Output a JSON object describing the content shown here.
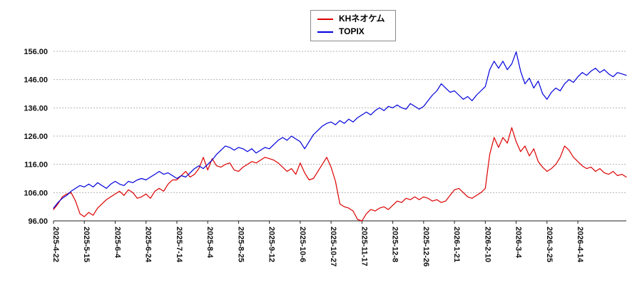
{
  "chart_data": {
    "type": "line",
    "title": "",
    "xlabel": "",
    "ylabel": "",
    "grid": "horizontal-dotted",
    "legend": {
      "position": "top-center",
      "entries": [
        {
          "label": "KHネオケム",
          "color": "#dd0000"
        },
        {
          "label": "TOPIX",
          "color": "#0000dd"
        }
      ]
    },
    "ylim": [
      96,
      156
    ],
    "y_ticks": [
      96,
      106,
      116,
      126,
      136,
      146,
      156
    ],
    "y_tick_labels": [
      "96.00",
      "106.00",
      "116.00",
      "126.00",
      "136.00",
      "146.00",
      "156.00"
    ],
    "x_tick_labels": [
      "2025-4-22",
      "2025-5-15",
      "2025-6-4",
      "2025-6-24",
      "2025-7-14",
      "2025-8-4",
      "2025-8-25",
      "2025-9-12",
      "2025-10-6",
      "2025-10-27",
      "2025-11-17",
      "2025-12-8",
      "2025-12-26",
      "2026-1-21",
      "2026-2-10",
      "2026-3-4",
      "2026-3-25",
      "2026-4-14"
    ],
    "points_per_tick_interval": 7,
    "series": [
      {
        "name": "KHネオケム",
        "color": "#dd0000",
        "values": [
          100.0,
          102.0,
          104.5,
          105.5,
          106.0,
          103.0,
          98.5,
          97.5,
          99.0,
          98.0,
          100.5,
          102.0,
          103.5,
          104.5,
          105.5,
          106.5,
          105.0,
          107.0,
          106.0,
          104.0,
          104.5,
          105.5,
          104.0,
          106.5,
          107.5,
          106.5,
          109.0,
          110.5,
          110.5,
          112.0,
          113.5,
          111.5,
          112.5,
          114.5,
          118.5,
          114.0,
          118.0,
          115.5,
          115.0,
          116.0,
          116.5,
          114.0,
          113.5,
          115.0,
          116.0,
          117.0,
          116.5,
          117.5,
          118.5,
          118.0,
          117.5,
          116.5,
          115.0,
          113.5,
          114.5,
          112.5,
          116.5,
          113.0,
          110.5,
          111.0,
          113.5,
          116.0,
          118.5,
          115.0,
          110.0,
          102.0,
          101.0,
          100.5,
          99.5,
          96.5,
          96.0,
          98.5,
          100.0,
          99.5,
          100.5,
          101.0,
          100.0,
          101.5,
          103.0,
          102.5,
          104.0,
          103.5,
          104.5,
          103.5,
          104.5,
          104.0,
          103.0,
          103.5,
          102.5,
          103.0,
          105.0,
          107.0,
          107.5,
          106.0,
          104.5,
          104.0,
          105.0,
          106.0,
          107.5,
          119.5,
          125.5,
          122.0,
          125.5,
          123.5,
          129.0,
          124.0,
          120.5,
          122.5,
          119.0,
          121.5,
          117.0,
          115.0,
          113.5,
          114.5,
          116.0,
          118.5,
          122.5,
          121.0,
          118.5,
          117.0,
          115.5,
          114.5,
          115.0,
          113.5,
          114.5,
          113.0,
          112.5,
          113.5,
          112.0,
          112.5,
          111.5
        ]
      },
      {
        "name": "TOPIX",
        "color": "#0000dd",
        "values": [
          100.5,
          102.5,
          104.0,
          105.0,
          106.5,
          107.5,
          108.5,
          108.0,
          109.0,
          108.0,
          109.5,
          108.5,
          107.5,
          109.0,
          110.0,
          109.0,
          108.5,
          110.0,
          109.5,
          110.5,
          111.0,
          110.5,
          111.5,
          112.5,
          113.5,
          112.5,
          113.0,
          112.0,
          111.0,
          112.0,
          111.5,
          113.0,
          114.5,
          115.5,
          114.5,
          116.0,
          117.5,
          119.5,
          121.0,
          122.5,
          122.0,
          121.0,
          122.0,
          121.5,
          120.5,
          121.5,
          120.0,
          121.0,
          122.0,
          121.5,
          123.0,
          124.5,
          125.5,
          124.5,
          126.0,
          125.0,
          124.0,
          121.5,
          124.0,
          126.5,
          128.0,
          129.5,
          130.5,
          131.0,
          130.0,
          131.5,
          130.5,
          132.0,
          131.0,
          132.5,
          133.5,
          134.5,
          133.5,
          135.0,
          136.0,
          135.0,
          136.5,
          136.0,
          137.0,
          136.0,
          135.5,
          137.5,
          136.5,
          135.5,
          136.5,
          138.5,
          140.5,
          142.0,
          144.5,
          143.0,
          141.5,
          142.0,
          140.5,
          139.0,
          140.0,
          138.5,
          140.5,
          142.0,
          143.5,
          149.5,
          152.5,
          150.0,
          152.5,
          149.5,
          151.5,
          155.8,
          149.0,
          144.5,
          146.5,
          143.0,
          145.5,
          141.0,
          139.0,
          141.5,
          143.0,
          142.0,
          144.5,
          146.0,
          145.0,
          147.0,
          148.5,
          147.5,
          149.0,
          150.0,
          148.5,
          149.5,
          148.0,
          147.0,
          148.5,
          148.0,
          147.5
        ]
      }
    ]
  }
}
